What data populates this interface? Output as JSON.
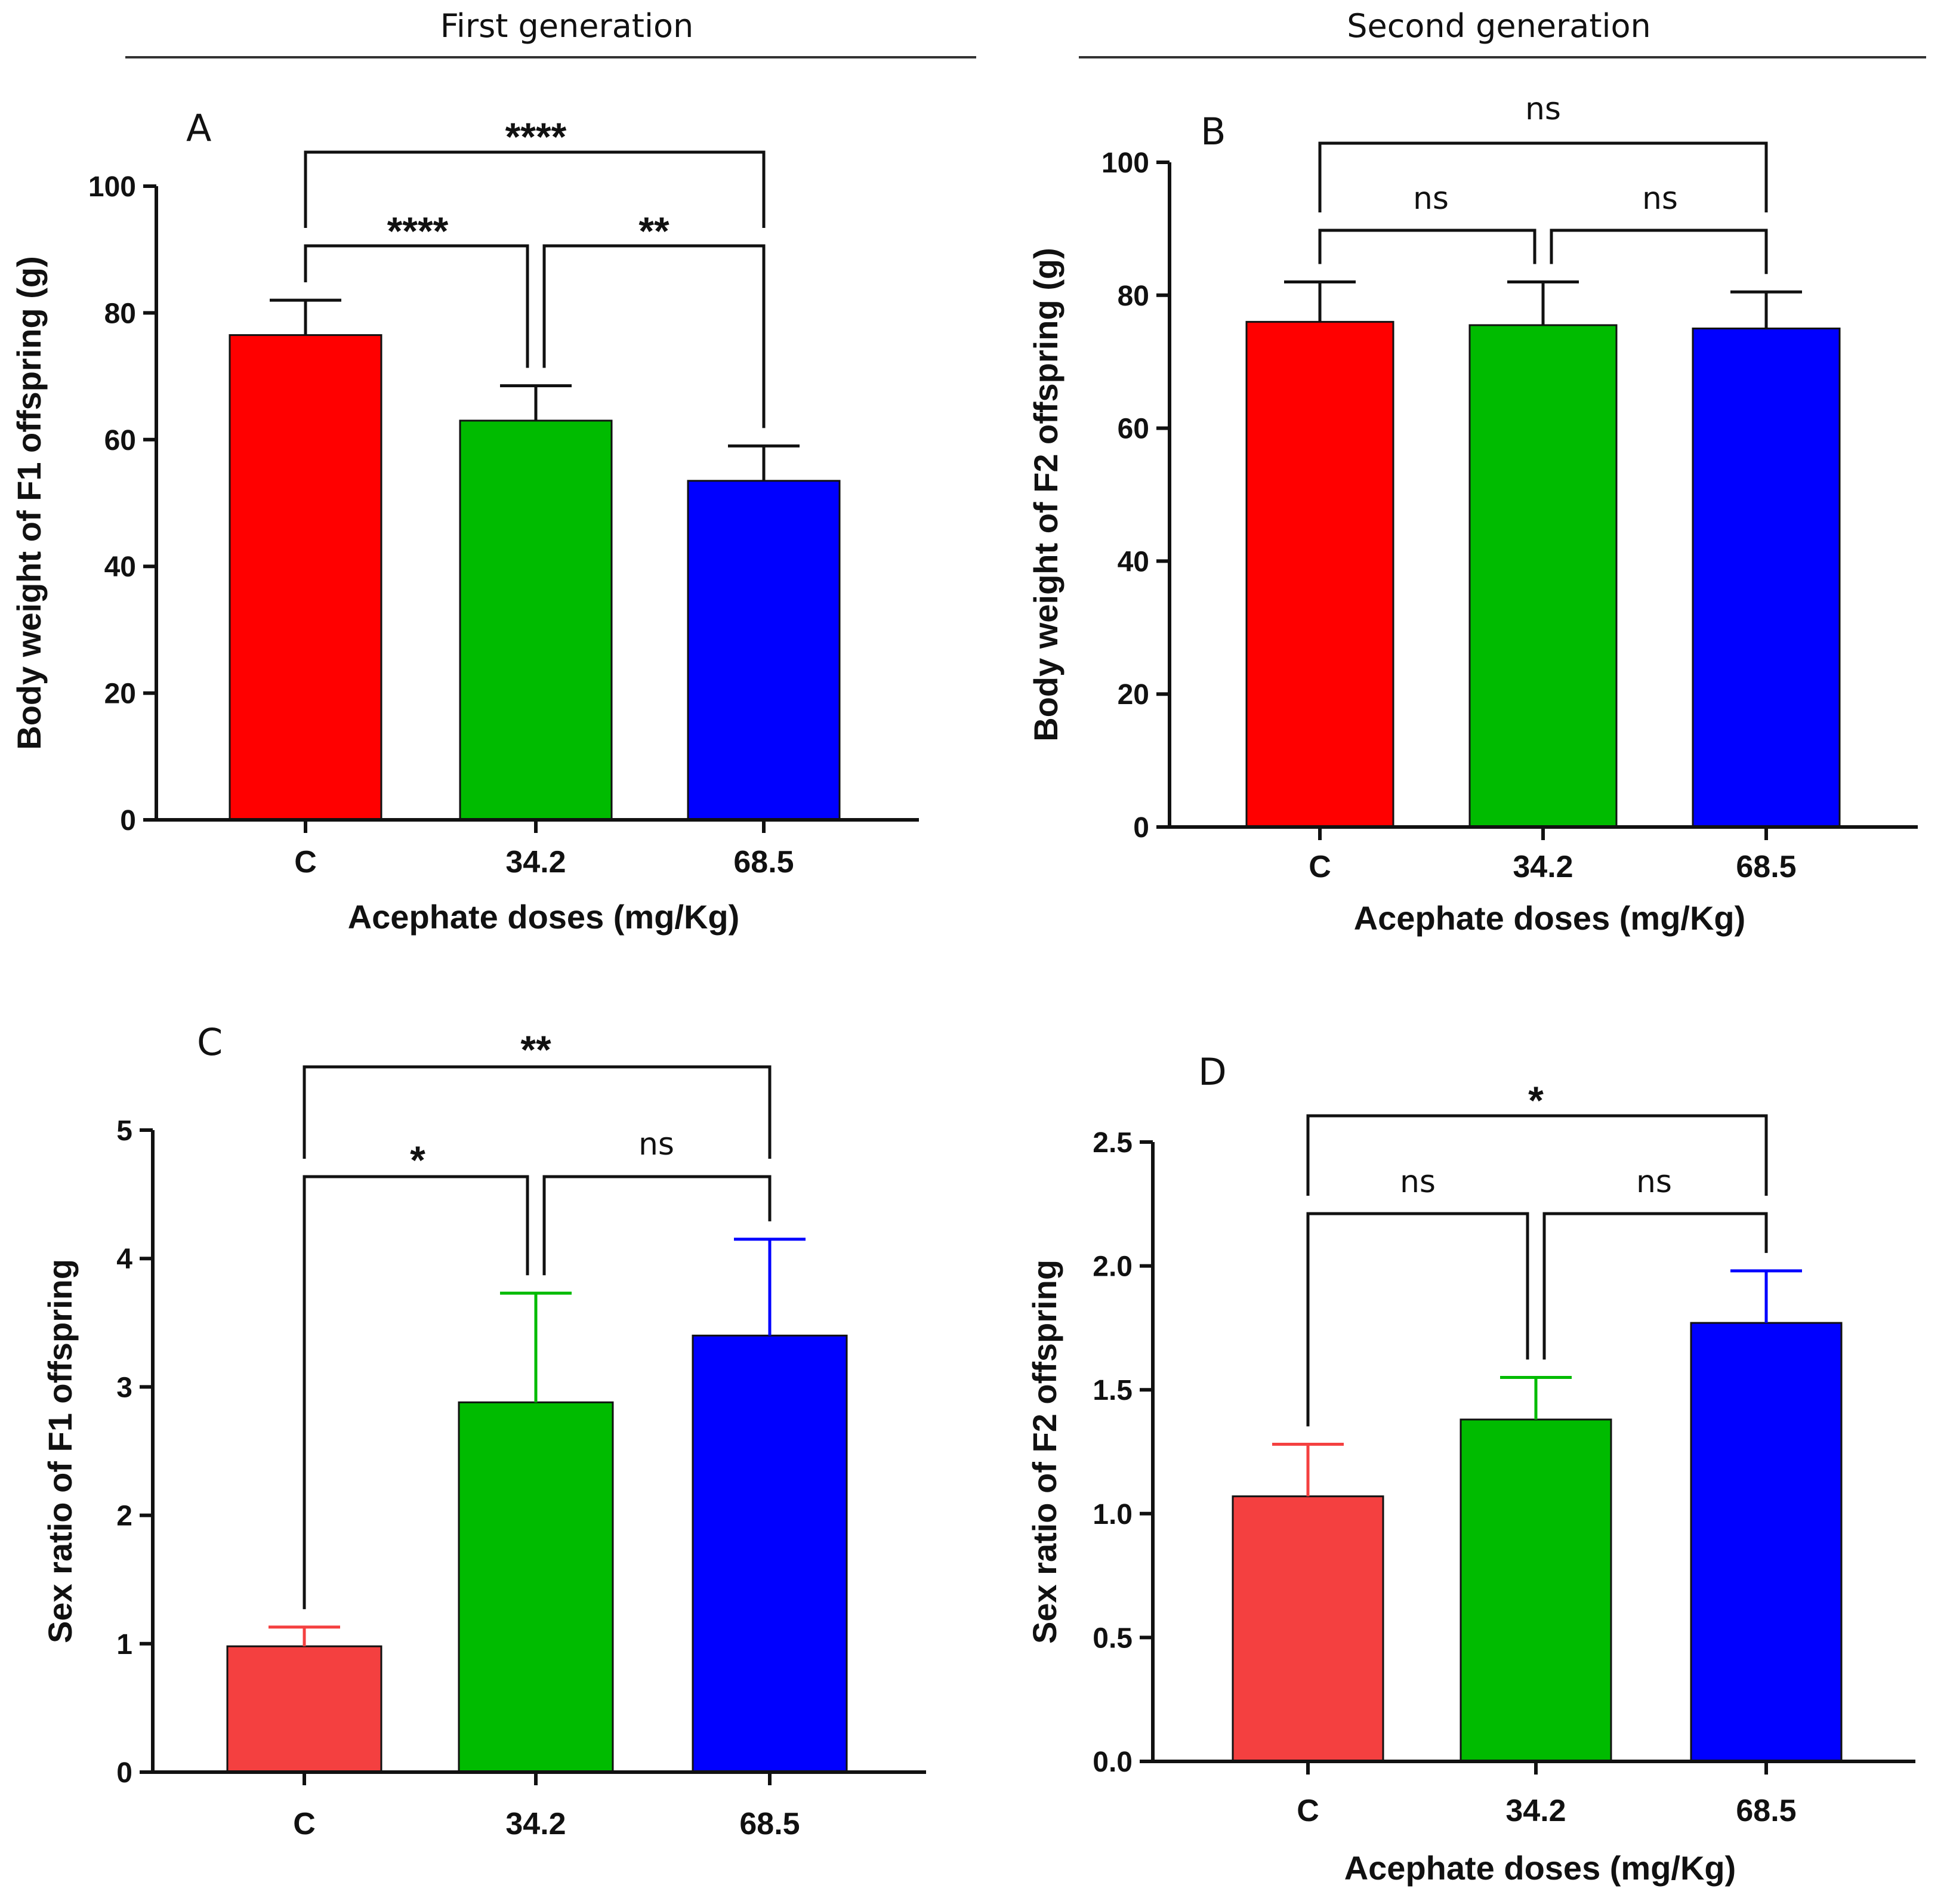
{
  "headers": {
    "first": "First generation",
    "second": "Second generation"
  },
  "chart_data": [
    {
      "panel": "A",
      "type": "bar",
      "categories": [
        "C",
        "34.2",
        "68.5"
      ],
      "values": [
        76.5,
        63,
        53.5
      ],
      "errors": [
        5.5,
        5.5,
        5.5
      ],
      "colors": [
        "#ff0000",
        "#00bb00",
        "#0000ff"
      ],
      "ylabel": "Body weight of F1 offspring (g)",
      "xlabel": "Acephate doses (mg/Kg)",
      "ylim": [
        0,
        100
      ],
      "yticks": [
        "0",
        "20",
        "40",
        "60",
        "80",
        "100"
      ],
      "comparisons": [
        {
          "from": 0,
          "to": 1,
          "label": "****"
        },
        {
          "from": 1,
          "to": 2,
          "label": "**"
        },
        {
          "from": 0,
          "to": 2,
          "label": "****"
        }
      ]
    },
    {
      "panel": "B",
      "type": "bar",
      "categories": [
        "C",
        "34.2",
        "68.5"
      ],
      "values": [
        76,
        75.5,
        75
      ],
      "errors": [
        6,
        6.5,
        5.5
      ],
      "colors": [
        "#ff0000",
        "#00bb00",
        "#0000ff"
      ],
      "ylabel": "Body weight of F2 offspring (g)",
      "xlabel": "Acephate doses (mg/Kg)",
      "ylim": [
        0,
        100
      ],
      "yticks": [
        "0",
        "20",
        "40",
        "60",
        "80",
        "100"
      ],
      "comparisons": [
        {
          "from": 0,
          "to": 1,
          "label": "ns"
        },
        {
          "from": 1,
          "to": 2,
          "label": "ns"
        },
        {
          "from": 0,
          "to": 2,
          "label": "ns"
        }
      ]
    },
    {
      "panel": "C",
      "type": "bar",
      "categories": [
        "C",
        "34.2",
        "68.5"
      ],
      "values": [
        0.98,
        2.88,
        3.4
      ],
      "errors": [
        0.15,
        0.85,
        0.75
      ],
      "colors": [
        "#f44040",
        "#00bb00",
        "#0000ff"
      ],
      "ylabel": "Sex ratio of F1 offspring",
      "xlabel": "",
      "ylim": [
        0,
        5
      ],
      "yticks": [
        "0",
        "1",
        "2",
        "3",
        "4",
        "5"
      ],
      "comparisons": [
        {
          "from": 0,
          "to": 1,
          "label": "*"
        },
        {
          "from": 1,
          "to": 2,
          "label": "ns"
        },
        {
          "from": 0,
          "to": 2,
          "label": "**"
        }
      ]
    },
    {
      "panel": "D",
      "type": "bar",
      "categories": [
        "C",
        "34.2",
        "68.5"
      ],
      "values": [
        1.07,
        1.38,
        1.77
      ],
      "errors": [
        0.21,
        0.17,
        0.21
      ],
      "colors": [
        "#f44040",
        "#00bb00",
        "#0000ff"
      ],
      "ylabel": "Sex ratio of F2 offspring",
      "xlabel": "Acephate doses (mg/Kg)",
      "ylim": [
        0,
        2.5
      ],
      "yticks": [
        "0.0",
        "0.5",
        "1.0",
        "1.5",
        "2.0",
        "2.5"
      ],
      "comparisons": [
        {
          "from": 0,
          "to": 1,
          "label": "ns"
        },
        {
          "from": 1,
          "to": 2,
          "label": "ns"
        },
        {
          "from": 0,
          "to": 2,
          "label": "*"
        }
      ]
    }
  ]
}
